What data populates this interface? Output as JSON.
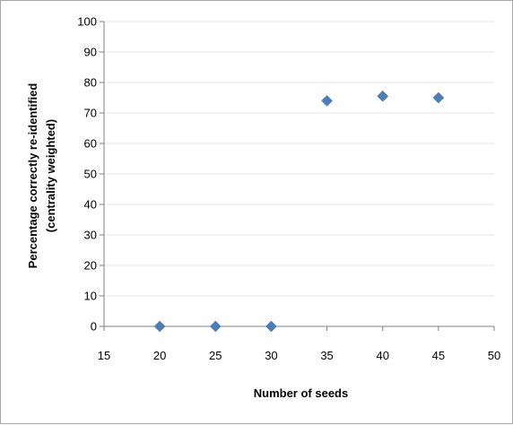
{
  "chart_data": {
    "type": "scatter",
    "title": "",
    "xlabel": "Number of seeds",
    "ylabel_lines": [
      "Percentage correctly re-identified",
      "(centrality weighted)"
    ],
    "xlim": [
      15,
      50
    ],
    "ylim": [
      0,
      100
    ],
    "xticks": [
      15,
      20,
      25,
      30,
      35,
      40,
      45,
      50
    ],
    "yticks": [
      0,
      10,
      20,
      30,
      40,
      50,
      60,
      70,
      80,
      90,
      100
    ],
    "grid": "horizontal",
    "legend": "none",
    "marker": "diamond",
    "colors": {
      "marker": "#4a7ebb",
      "grid": "#e6e6e6",
      "axis": "#808080"
    },
    "series": [
      {
        "x": [
          20,
          25,
          30,
          35,
          40,
          45
        ],
        "y": [
          0,
          0,
          0,
          74,
          75.5,
          75
        ]
      }
    ]
  }
}
